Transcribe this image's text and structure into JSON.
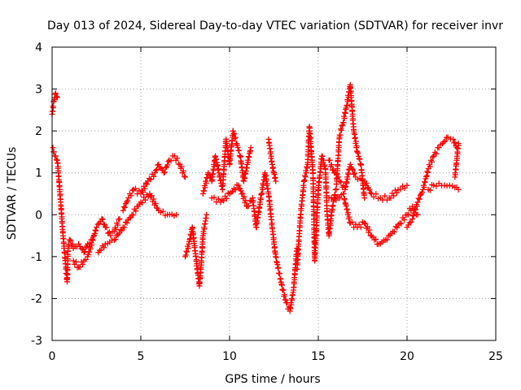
{
  "chart_data": {
    "type": "scatter",
    "title": "Day 013 of 2024, Sidereal Day-to-day VTEC variation (SDTVAR) for receiver invr",
    "xlabel": "GPS time / hours",
    "ylabel": "SDTVAR / TECUs",
    "xlim": [
      0,
      25
    ],
    "ylim": [
      -3,
      4
    ],
    "xticks": [
      "0",
      "5",
      "10",
      "15",
      "20",
      "25"
    ],
    "yticks": [
      "-3",
      "-2",
      "-1",
      "0",
      "1",
      "2",
      "3",
      "4"
    ],
    "grid": true,
    "marker": "+",
    "series": [
      {
        "name": "SDTVAR",
        "color": "#ff0000",
        "points": [
          [
            0.0,
            2.4
          ],
          [
            0.1,
            2.7
          ],
          [
            0.2,
            2.9
          ],
          [
            0.3,
            2.8
          ],
          [
            0.05,
            1.6
          ],
          [
            0.1,
            1.5
          ],
          [
            0.2,
            1.4
          ],
          [
            0.3,
            1.3
          ],
          [
            0.5,
            0.2
          ],
          [
            0.6,
            -0.4
          ],
          [
            0.7,
            -0.9
          ],
          [
            0.8,
            -1.4
          ],
          [
            0.85,
            -1.6
          ],
          [
            0.9,
            -0.8
          ],
          [
            1.0,
            -0.6
          ],
          [
            1.2,
            -0.8
          ],
          [
            1.5,
            -0.7
          ],
          [
            1.8,
            -0.9
          ],
          [
            2.0,
            -0.7
          ],
          [
            2.2,
            -0.6
          ],
          [
            1.2,
            -1.1
          ],
          [
            1.5,
            -1.25
          ],
          [
            1.8,
            -1.1
          ],
          [
            2.0,
            -1.0
          ],
          [
            2.5,
            -0.3
          ],
          [
            2.8,
            -0.1
          ],
          [
            3.0,
            -0.3
          ],
          [
            3.3,
            -0.5
          ],
          [
            3.5,
            -0.4
          ],
          [
            3.8,
            -0.1
          ],
          [
            2.6,
            -0.9
          ],
          [
            3.0,
            -0.7
          ],
          [
            3.5,
            -0.6
          ],
          [
            4.0,
            -0.3
          ],
          [
            4.5,
            0.0
          ],
          [
            5.0,
            0.3
          ],
          [
            5.5,
            0.5
          ],
          [
            6.0,
            0.1
          ],
          [
            6.5,
            0.0
          ],
          [
            7.0,
            0.0
          ],
          [
            4.0,
            0.1
          ],
          [
            4.3,
            0.4
          ],
          [
            4.6,
            0.6
          ],
          [
            5.0,
            0.5
          ],
          [
            5.4,
            0.8
          ],
          [
            5.8,
            1.0
          ],
          [
            6.0,
            1.2
          ],
          [
            6.3,
            1.0
          ],
          [
            6.6,
            1.3
          ],
          [
            6.9,
            1.4
          ],
          [
            7.2,
            1.2
          ],
          [
            7.5,
            0.9
          ],
          [
            7.5,
            -1.0
          ],
          [
            7.7,
            -0.7
          ],
          [
            7.9,
            -0.3
          ],
          [
            8.3,
            -1.7
          ],
          [
            8.4,
            -1.2
          ],
          [
            8.5,
            -0.5
          ],
          [
            8.7,
            0.0
          ],
          [
            8.5,
            0.5
          ],
          [
            8.8,
            1.0
          ],
          [
            9.0,
            0.8
          ],
          [
            9.2,
            1.4
          ],
          [
            9.4,
            1.0
          ],
          [
            9.6,
            0.6
          ],
          [
            9.8,
            1.8
          ],
          [
            10.0,
            1.2
          ],
          [
            10.2,
            2.0
          ],
          [
            10.4,
            1.7
          ],
          [
            10.6,
            1.4
          ],
          [
            10.8,
            0.8
          ],
          [
            11.0,
            1.2
          ],
          [
            11.2,
            1.6
          ],
          [
            9.0,
            0.4
          ],
          [
            9.5,
            0.3
          ],
          [
            10.0,
            0.5
          ],
          [
            10.5,
            0.7
          ],
          [
            11.0,
            0.2
          ],
          [
            11.3,
            0.4
          ],
          [
            11.5,
            -0.3
          ],
          [
            11.8,
            0.5
          ],
          [
            12.0,
            1.0
          ],
          [
            12.2,
            0.5
          ],
          [
            12.4,
            -0.3
          ],
          [
            12.6,
            -1.0
          ],
          [
            12.8,
            -1.4
          ],
          [
            13.0,
            -1.8
          ],
          [
            13.2,
            -2.1
          ],
          [
            13.4,
            -2.3
          ],
          [
            13.6,
            -1.8
          ],
          [
            13.8,
            -0.8
          ],
          [
            12.2,
            1.8
          ],
          [
            12.4,
            1.2
          ],
          [
            12.6,
            0.8
          ],
          [
            13.8,
            -1.3
          ],
          [
            14.0,
            0.0
          ],
          [
            14.2,
            0.8
          ],
          [
            14.4,
            1.2
          ],
          [
            14.5,
            2.1
          ],
          [
            14.7,
            1.0
          ],
          [
            14.8,
            -1.1
          ],
          [
            15.0,
            0.6
          ],
          [
            15.2,
            1.4
          ],
          [
            15.4,
            1.1
          ],
          [
            15.5,
            0.0
          ],
          [
            15.6,
            -0.5
          ],
          [
            15.8,
            0.2
          ],
          [
            16.0,
            0.6
          ],
          [
            16.2,
            1.9
          ],
          [
            16.4,
            2.2
          ],
          [
            16.6,
            2.6
          ],
          [
            16.8,
            3.1
          ],
          [
            17.0,
            2.0
          ],
          [
            17.2,
            1.5
          ],
          [
            17.4,
            1.2
          ],
          [
            17.6,
            0.4
          ],
          [
            15.6,
            1.3
          ],
          [
            15.9,
            1.0
          ],
          [
            16.2,
            0.8
          ],
          [
            16.5,
            0.6
          ],
          [
            16.8,
            1.2
          ],
          [
            17.1,
            0.9
          ],
          [
            17.6,
            0.8
          ],
          [
            18.0,
            0.5
          ],
          [
            18.5,
            0.4
          ],
          [
            19.0,
            0.4
          ],
          [
            19.5,
            0.6
          ],
          [
            20.0,
            0.7
          ],
          [
            15.6,
            0.4
          ],
          [
            16.0,
            0.35
          ],
          [
            16.4,
            0.5
          ],
          [
            16.8,
            -0.2
          ],
          [
            17.2,
            -0.3
          ],
          [
            17.6,
            -0.2
          ],
          [
            18.0,
            -0.5
          ],
          [
            18.4,
            -0.7
          ],
          [
            18.8,
            -0.6
          ],
          [
            19.2,
            -0.4
          ],
          [
            19.6,
            -0.2
          ],
          [
            20.0,
            0.0
          ],
          [
            20.3,
            0.2
          ],
          [
            20.6,
            0.0
          ],
          [
            20.0,
            -0.3
          ],
          [
            20.3,
            -0.1
          ],
          [
            20.6,
            0.3
          ],
          [
            20.9,
            0.6
          ],
          [
            21.2,
            1.1
          ],
          [
            21.5,
            1.4
          ],
          [
            21.8,
            1.6
          ],
          [
            22.0,
            1.7
          ],
          [
            22.3,
            1.85
          ],
          [
            22.6,
            1.8
          ],
          [
            22.8,
            1.6
          ],
          [
            21.2,
            0.6
          ],
          [
            21.5,
            0.7
          ],
          [
            21.8,
            0.75
          ],
          [
            22.1,
            0.7
          ],
          [
            22.4,
            0.7
          ],
          [
            22.7,
            0.65
          ],
          [
            22.9,
            0.6
          ],
          [
            22.7,
            0.9
          ],
          [
            22.8,
            1.3
          ],
          [
            22.9,
            1.7
          ]
        ]
      }
    ]
  }
}
